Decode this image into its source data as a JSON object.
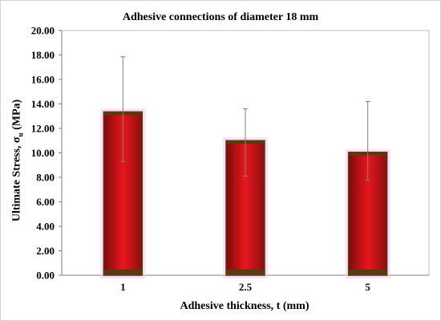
{
  "chart_data": {
    "type": "bar",
    "title": "Adhesive connections of diameter 18 mm",
    "xlabel": "Adhesive thickness, t (mm)",
    "ylabel": "Ultimate Stress, σ",
    "ylabel_subscript": "u",
    "ylabel_unit": " (MPa)",
    "categories": [
      "1",
      "2.5",
      "5"
    ],
    "values": [
      13.35,
      11.0,
      10.05
    ],
    "error_upper": [
      17.85,
      13.6,
      14.2
    ],
    "error_lower": [
      9.3,
      8.1,
      7.8
    ],
    "ylim": [
      0,
      20
    ],
    "yticks": [
      "0.00",
      "2.00",
      "4.00",
      "6.00",
      "8.00",
      "10.00",
      "12.00",
      "14.00",
      "16.00",
      "18.00",
      "20.00"
    ],
    "grid": false,
    "legend": "none",
    "bar_color": "#d4141a",
    "bar_edge_color": "#5a3a10"
  }
}
